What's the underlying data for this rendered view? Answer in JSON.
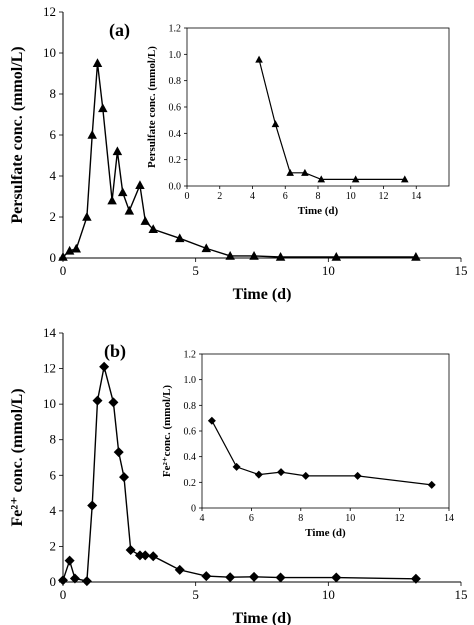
{
  "chart_data": [
    {
      "id": "a",
      "type": "line",
      "panel_label": "(a)",
      "xlabel": "Time (d)",
      "ylabel": "Persulfate conc. (mmol/L)",
      "xlim": [
        0,
        15
      ],
      "ylim": [
        0,
        12
      ],
      "xticks": [
        0,
        5,
        10,
        15
      ],
      "yticks": [
        0,
        2,
        4,
        6,
        8,
        10,
        12
      ],
      "marker": "triangle",
      "grid": false,
      "series": [
        {
          "x": [
            0,
            0.25,
            0.5,
            0.9,
            1.1,
            1.3,
            1.5,
            1.85,
            2.05,
            2.25,
            2.5,
            2.9,
            3.1,
            3.4,
            4.4,
            5.4,
            6.3,
            7.2,
            8.2,
            10.3,
            13.3
          ],
          "y": [
            0.05,
            0.35,
            0.45,
            2.0,
            6.0,
            9.5,
            7.3,
            2.8,
            5.2,
            3.2,
            2.3,
            3.55,
            1.8,
            1.4,
            0.96,
            0.47,
            0.1,
            0.1,
            0.05,
            0.05,
            0.05
          ]
        }
      ],
      "inset": {
        "type": "line",
        "xlabel": "Time (d)",
        "ylabel": "Persulfate conc. (mmol/L)",
        "xlim": [
          0,
          16
        ],
        "ylim": [
          0,
          1.2
        ],
        "xticks": [
          0,
          2,
          4,
          6,
          8,
          10,
          12,
          14
        ],
        "yticks": [
          0.0,
          0.2,
          0.4,
          0.6,
          0.8,
          1.0,
          1.2
        ],
        "yticklabels": [
          "0.0",
          "0.2",
          "0.4",
          "0.6",
          "0.8",
          "1.0",
          "1.2"
        ],
        "marker": "triangle",
        "series": [
          {
            "x": [
              4.4,
              5.4,
              6.3,
              7.2,
              8.2,
              10.3,
              13.3
            ],
            "y": [
              0.96,
              0.47,
              0.1,
              0.1,
              0.05,
              0.05,
              0.05
            ]
          }
        ]
      }
    },
    {
      "id": "b",
      "type": "line",
      "panel_label": "(b)",
      "xlabel": "Time (d)",
      "ylabel": "Fe²⁺ conc. (mmol/L)",
      "xlim": [
        0,
        15
      ],
      "ylim": [
        0,
        14
      ],
      "xticks": [
        0,
        5,
        10,
        15
      ],
      "yticks": [
        0,
        2,
        4,
        6,
        8,
        10,
        12,
        14
      ],
      "marker": "diamond",
      "grid": false,
      "series": [
        {
          "x": [
            0,
            0.25,
            0.45,
            0.9,
            1.1,
            1.3,
            1.55,
            1.9,
            2.1,
            2.3,
            2.55,
            2.9,
            3.1,
            3.4,
            4.4,
            5.4,
            6.3,
            7.2,
            8.2,
            10.3,
            13.3
          ],
          "y": [
            0.1,
            1.2,
            0.2,
            0.05,
            4.3,
            10.2,
            12.1,
            10.1,
            7.3,
            5.9,
            1.8,
            1.5,
            1.5,
            1.45,
            0.68,
            0.33,
            0.27,
            0.29,
            0.25,
            0.25,
            0.18
          ]
        }
      ],
      "inset": {
        "type": "line",
        "xlabel": "Time (d)",
        "ylabel": "Fe²⁺conc. (mmol/L)",
        "xlim": [
          4,
          14
        ],
        "ylim": [
          0,
          1.2
        ],
        "xticks": [
          4,
          6,
          8,
          10,
          12,
          14
        ],
        "yticks": [
          0.0,
          0.2,
          0.4,
          0.6,
          0.8,
          1.0,
          1.2
        ],
        "yticklabels": [
          "0",
          "0.2",
          "0.4",
          "0.6",
          "0.8",
          "1.0",
          "1.2"
        ],
        "marker": "diamond",
        "series": [
          {
            "x": [
              4.4,
              5.4,
              6.3,
              7.2,
              8.2,
              10.3,
              13.3
            ],
            "y": [
              0.68,
              0.32,
              0.26,
              0.28,
              0.25,
              0.25,
              0.18
            ]
          }
        ]
      }
    }
  ]
}
